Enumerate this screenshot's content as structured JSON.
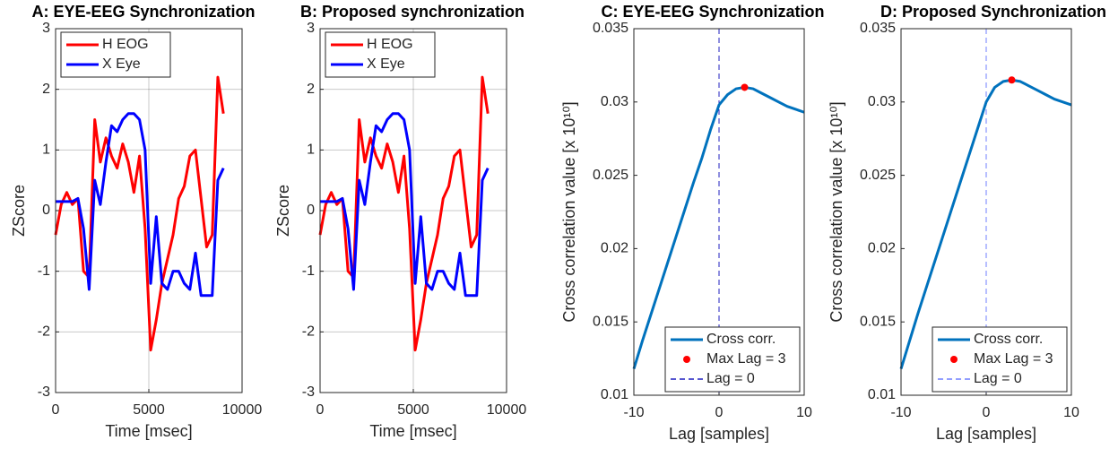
{
  "chart_data": [
    {
      "type": "line",
      "title": "A: EYE-EEG Synchronization",
      "xlabel": "Time [msec]",
      "ylabel": "ZScore",
      "x": [
        0,
        300,
        600,
        900,
        1200,
        1500,
        1800,
        2100,
        2400,
        2700,
        3000,
        3300,
        3600,
        3900,
        4200,
        4500,
        4800,
        5100,
        5400,
        5700,
        6000,
        6300,
        6600,
        6900,
        7200,
        7500,
        7800,
        8100,
        8400,
        8700,
        9000
      ],
      "series": [
        {
          "name": "H EOG",
          "color": "#ff0000",
          "values": [
            -0.4,
            0.1,
            0.3,
            0.1,
            0.2,
            -1.0,
            -1.1,
            1.5,
            0.8,
            1.2,
            0.9,
            0.7,
            1.1,
            0.8,
            0.3,
            0.9,
            -0.3,
            -2.3,
            -1.8,
            -1.2,
            -0.8,
            -0.4,
            0.2,
            0.4,
            0.9,
            1.0,
            0.2,
            -0.6,
            -0.4,
            2.2,
            1.6
          ]
        },
        {
          "name": "X Eye",
          "color": "#0000ff",
          "values": [
            0.15,
            0.15,
            0.15,
            0.15,
            0.2,
            -0.3,
            -1.3,
            0.5,
            0.1,
            0.8,
            1.4,
            1.3,
            1.5,
            1.6,
            1.6,
            1.5,
            1.0,
            -1.2,
            -0.1,
            -1.2,
            -1.3,
            -1.0,
            -1.0,
            -1.2,
            -1.3,
            -0.7,
            -1.4,
            -1.4,
            -1.4,
            0.5,
            0.7
          ]
        }
      ],
      "xlim": [
        0,
        10000
      ],
      "xticks": [
        0,
        5000,
        10000
      ],
      "ylim": [
        -3,
        3
      ],
      "yticks": [
        -3,
        -2,
        -1,
        0,
        1,
        2,
        3
      ],
      "grid": true,
      "legend": "upper left"
    },
    {
      "type": "line",
      "title": "B: Proposed synchronization",
      "xlabel": "Time [msec]",
      "ylabel": "ZScore",
      "x": [
        0,
        300,
        600,
        900,
        1200,
        1500,
        1800,
        2100,
        2400,
        2700,
        3000,
        3300,
        3600,
        3900,
        4200,
        4500,
        4800,
        5100,
        5400,
        5700,
        6000,
        6300,
        6600,
        6900,
        7200,
        7500,
        7800,
        8100,
        8400,
        8700,
        9000
      ],
      "series": [
        {
          "name": "H EOG",
          "color": "#ff0000",
          "values": [
            -0.4,
            0.1,
            0.3,
            0.1,
            0.2,
            -1.0,
            -1.1,
            1.5,
            0.8,
            1.2,
            0.9,
            0.7,
            1.1,
            0.8,
            0.3,
            0.9,
            -0.3,
            -2.3,
            -1.8,
            -1.2,
            -0.8,
            -0.4,
            0.2,
            0.4,
            0.9,
            1.0,
            0.2,
            -0.6,
            -0.4,
            2.2,
            1.6
          ]
        },
        {
          "name": "X Eye",
          "color": "#0000ff",
          "values": [
            0.15,
            0.15,
            0.15,
            0.15,
            0.2,
            -0.3,
            -1.3,
            0.5,
            0.1,
            0.8,
            1.4,
            1.3,
            1.5,
            1.6,
            1.6,
            1.5,
            1.0,
            -1.2,
            -0.1,
            -1.2,
            -1.3,
            -1.0,
            -1.0,
            -1.2,
            -1.3,
            -0.7,
            -1.4,
            -1.4,
            -1.4,
            0.5,
            0.7
          ]
        }
      ],
      "xlim": [
        0,
        10000
      ],
      "xticks": [
        0,
        5000,
        10000
      ],
      "ylim": [
        -3,
        3
      ],
      "yticks": [
        -3,
        -2,
        -1,
        0,
        1,
        2,
        3
      ],
      "grid": true,
      "legend": "upper left"
    },
    {
      "type": "line",
      "title": "C: EYE-EEG Synchronization",
      "xlabel": "Lag [samples]",
      "ylabel": "Cross correlation value [x 10¹⁰]",
      "x": [
        -10,
        -9,
        -8,
        -7,
        -6,
        -5,
        -4,
        -3,
        -2,
        -1,
        0,
        1,
        2,
        3,
        4,
        5,
        6,
        7,
        8,
        9,
        10
      ],
      "series": [
        {
          "name": "Cross corr.",
          "color": "#0072bd",
          "values": [
            0.0118,
            0.0137,
            0.0155,
            0.0173,
            0.0191,
            0.0209,
            0.0227,
            0.0245,
            0.0262,
            0.0281,
            0.0298,
            0.0305,
            0.0309,
            0.031,
            0.0309,
            0.0306,
            0.0303,
            0.03,
            0.0297,
            0.0295,
            0.0293
          ]
        }
      ],
      "max_point": {
        "name": "Max Lag = 3",
        "x": 3,
        "y": 0.031,
        "color": "#ff0000"
      },
      "zero_line": {
        "name": "Lag = 0",
        "x": 0,
        "color": "#1f1fbf"
      },
      "xlim": [
        -10,
        10
      ],
      "xticks": [
        -10,
        0,
        10
      ],
      "ylim": [
        0.01,
        0.035
      ],
      "yticks": [
        0.01,
        0.015,
        0.02,
        0.025,
        0.03,
        0.035
      ],
      "grid": false,
      "legend": "lower right"
    },
    {
      "type": "line",
      "title": "D: Proposed Synchronization",
      "xlabel": "Lag [samples]",
      "ylabel": "Cross correlation value [x 10¹⁰]",
      "x": [
        -10,
        -9,
        -8,
        -7,
        -6,
        -5,
        -4,
        -3,
        -2,
        -1,
        0,
        1,
        2,
        3,
        4,
        5,
        6,
        7,
        8,
        9,
        10
      ],
      "series": [
        {
          "name": "Cross corr.",
          "color": "#0072bd",
          "values": [
            0.0118,
            0.0137,
            0.0156,
            0.0174,
            0.0192,
            0.021,
            0.0228,
            0.0246,
            0.0264,
            0.0282,
            0.03,
            0.031,
            0.0314,
            0.0315,
            0.0314,
            0.0311,
            0.0308,
            0.0305,
            0.0302,
            0.03,
            0.0298
          ]
        }
      ],
      "max_point": {
        "name": "Max Lag = 3",
        "x": 3,
        "y": 0.0315,
        "color": "#ff0000"
      },
      "zero_line": {
        "name": "Lag = 0",
        "x": 0,
        "color": "#6f7fff"
      },
      "xlim": [
        -10,
        10
      ],
      "xticks": [
        -10,
        0,
        10
      ],
      "ylim": [
        0.01,
        0.035
      ],
      "yticks": [
        0.01,
        0.015,
        0.02,
        0.025,
        0.03,
        0.035
      ],
      "grid": false,
      "legend": "lower right"
    }
  ]
}
